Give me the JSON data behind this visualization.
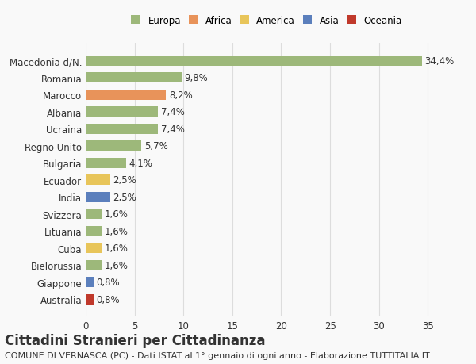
{
  "title": "Cittadini Stranieri per Cittadinanza",
  "subtitle": "COMUNE DI VERNASCA (PC) - Dati ISTAT al 1° gennaio di ogni anno - Elaborazione TUTTITALIA.IT",
  "countries": [
    "Australia",
    "Giappone",
    "Bielorussia",
    "Cuba",
    "Lituania",
    "Svizzera",
    "India",
    "Ecuador",
    "Bulgaria",
    "Regno Unito",
    "Ucraina",
    "Albania",
    "Marocco",
    "Romania",
    "Macedonia d/N."
  ],
  "values": [
    0.8,
    0.8,
    1.6,
    1.6,
    1.6,
    1.6,
    2.5,
    2.5,
    4.1,
    5.7,
    7.4,
    7.4,
    8.2,
    9.8,
    34.4
  ],
  "labels": [
    "0,8%",
    "0,8%",
    "1,6%",
    "1,6%",
    "1,6%",
    "1,6%",
    "2,5%",
    "2,5%",
    "4,1%",
    "5,7%",
    "7,4%",
    "7,4%",
    "8,2%",
    "9,8%",
    "34,4%"
  ],
  "colors": [
    "#c0392b",
    "#5b7fbc",
    "#9db87a",
    "#e8c55a",
    "#9db87a",
    "#9db87a",
    "#5b7fbc",
    "#e8c55a",
    "#9db87a",
    "#9db87a",
    "#9db87a",
    "#9db87a",
    "#e8935a",
    "#9db87a",
    "#9db87a"
  ],
  "legend": {
    "Europa": "#9db87a",
    "Africa": "#e8935a",
    "America": "#e8c55a",
    "Asia": "#5b7fbc",
    "Oceania": "#c0392b"
  },
  "xlim": [
    0,
    37
  ],
  "xticks": [
    0,
    5,
    10,
    15,
    20,
    25,
    30,
    35
  ],
  "background_color": "#f9f9f9",
  "bar_background": "#ffffff",
  "grid_color": "#dddddd",
  "text_color": "#333333",
  "bar_height": 0.6,
  "label_fontsize": 8.5,
  "tick_fontsize": 8.5,
  "title_fontsize": 12,
  "subtitle_fontsize": 8
}
